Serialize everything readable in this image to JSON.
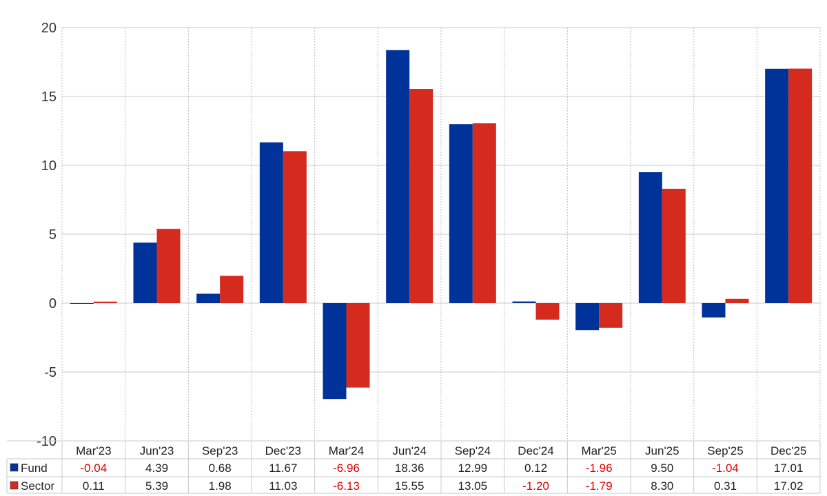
{
  "chart_data": {
    "type": "bar",
    "categories": [
      "Mar'23",
      "Jun'23",
      "Sep'23",
      "Dec'23",
      "Mar'24",
      "Jun'24",
      "Sep'24",
      "Dec'24",
      "Mar'25",
      "Jun'25",
      "Sep'25",
      "Dec'25"
    ],
    "series": [
      {
        "name": "Fund",
        "color": "#003399",
        "values": [
          -0.04,
          4.39,
          0.68,
          11.67,
          -6.96,
          18.36,
          12.99,
          0.12,
          -1.96,
          9.5,
          -1.04,
          17.01
        ]
      },
      {
        "name": "Sector",
        "color": "#d52b1e",
        "values": [
          0.11,
          5.39,
          1.98,
          11.03,
          -6.13,
          15.55,
          13.05,
          -1.2,
          -1.79,
          8.3,
          0.31,
          17.02
        ]
      }
    ],
    "yticks": [
      20,
      15,
      10,
      5,
      0,
      -5,
      -10
    ],
    "ylim": [
      -10,
      20
    ],
    "grid": true,
    "legend": "data-table-below",
    "negative_value_color": "#e00000"
  }
}
